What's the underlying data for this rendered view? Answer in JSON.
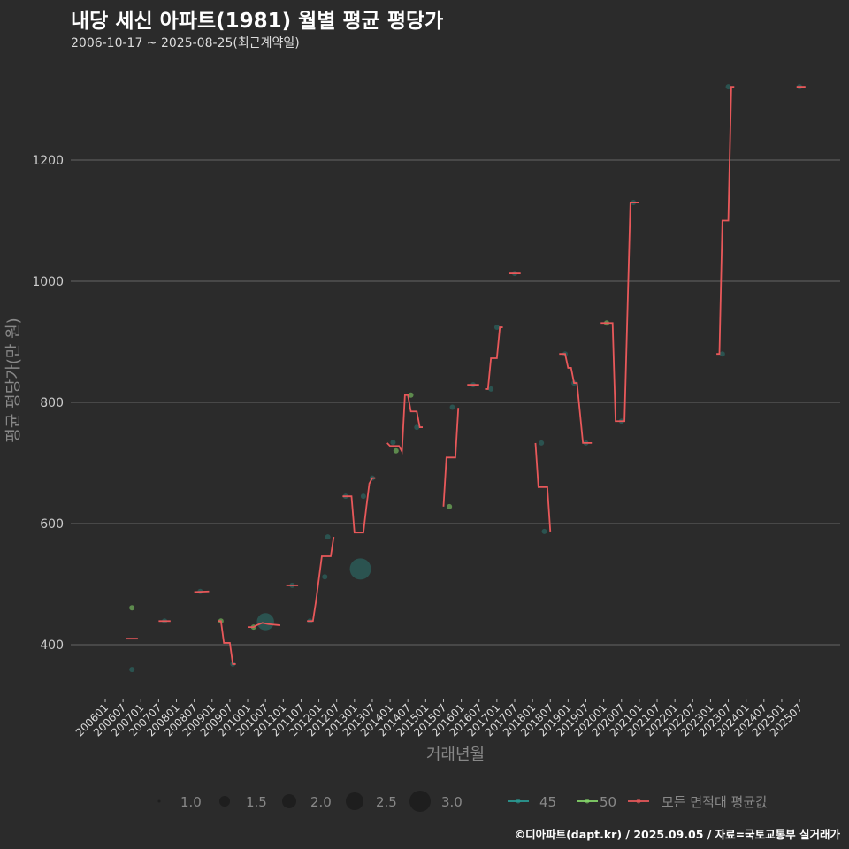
{
  "header": {
    "title": "내당 세신 아파트(1981) 월별 평균 평당가",
    "subtitle": "2006-10-17 ~ 2025-08-25(최근계약일)"
  },
  "footer": "©디아파트(dapt.kr) / 2025.09.05 / 자료=국토교통부 실거래가",
  "colors": {
    "background": "#2b2b2b",
    "s45": "#2a9d96",
    "s50": "#86d96a",
    "avg": "#e8585a",
    "grid": "#5a5a5a"
  },
  "chart_data": {
    "type": "line",
    "title": "내당 세신 아파트(1981) 월별 평균 평당가",
    "xlabel": "거래년월",
    "ylabel": "평균 평당가(만 원)",
    "ylim": [
      310,
      1340
    ],
    "xlim": [
      "2006-01",
      "2025-10"
    ],
    "yticks": [
      400,
      600,
      800,
      1000,
      1200
    ],
    "xticks": [
      "200601",
      "200607",
      "200701",
      "200707",
      "200801",
      "200807",
      "200901",
      "200907",
      "201001",
      "201007",
      "201101",
      "201107",
      "201201",
      "201207",
      "201301",
      "201307",
      "201401",
      "201407",
      "201501",
      "201507",
      "201601",
      "201607",
      "201701",
      "201707",
      "201801",
      "201807",
      "201901",
      "201907",
      "202001",
      "202007",
      "202101",
      "202107",
      "202201",
      "202207",
      "202301",
      "202307",
      "202401",
      "202407",
      "202501",
      "202507"
    ],
    "grid": "horizontal",
    "legend_position": "bottom",
    "size_legend": [
      "1.0",
      "1.5",
      "2.0",
      "2.5",
      "3.0"
    ],
    "color_legend": [
      "45",
      "50",
      "모든 면적대 평균값"
    ],
    "avg_series": {
      "name": "모든 면적대 평균값",
      "segments": [
        [
          [
            "2006-08",
            410
          ],
          [
            "2006-12",
            410
          ]
        ],
        [
          [
            "2007-07",
            439
          ],
          [
            "2007-11",
            439
          ]
        ],
        [
          [
            "2008-07",
            487
          ],
          [
            "2008-12",
            488
          ]
        ],
        [
          [
            "2009-03",
            439
          ],
          [
            "2009-04",
            439
          ],
          [
            "2009-05",
            403
          ],
          [
            "2009-07",
            403
          ],
          [
            "2009-08",
            368
          ],
          [
            "2009-09",
            368
          ]
        ],
        [
          [
            "2010-01",
            429
          ],
          [
            "2010-03",
            429
          ],
          [
            "2010-04",
            432
          ],
          [
            "2010-06",
            436
          ],
          [
            "2010-08",
            434
          ],
          [
            "2010-12",
            432
          ]
        ],
        [
          [
            "2011-02",
            498
          ],
          [
            "2011-06",
            498
          ]
        ],
        [
          [
            "2011-09",
            439
          ],
          [
            "2011-11",
            439
          ],
          [
            "2011-12",
            471
          ],
          [
            "2012-02",
            546
          ],
          [
            "2012-05",
            546
          ],
          [
            "2012-06",
            578
          ]
        ],
        [
          [
            "2012-09",
            645
          ],
          [
            "2012-12",
            645
          ],
          [
            "2013-01",
            585
          ],
          [
            "2013-04",
            585
          ],
          [
            "2013-05",
            627
          ],
          [
            "2013-06",
            666
          ],
          [
            "2013-07",
            675
          ],
          [
            "2013-08",
            675
          ]
        ],
        [
          [
            "2013-12",
            733
          ],
          [
            "2014-01",
            728
          ],
          [
            "2014-04",
            728
          ],
          [
            "2014-05",
            719
          ],
          [
            "2014-06",
            812
          ],
          [
            "2014-07",
            812
          ],
          [
            "2014-08",
            785
          ],
          [
            "2014-10",
            785
          ],
          [
            "2014-11",
            759
          ],
          [
            "2014-12",
            759
          ]
        ],
        [
          [
            "2015-07",
            628
          ],
          [
            "2015-08",
            709
          ],
          [
            "2015-11",
            709
          ],
          [
            "2015-12",
            791
          ]
        ],
        [
          [
            "2016-03",
            829
          ],
          [
            "2016-07",
            829
          ]
        ],
        [
          [
            "2016-09",
            822
          ],
          [
            "2016-10",
            822
          ],
          [
            "2016-11",
            873
          ],
          [
            "2017-01",
            873
          ],
          [
            "2017-02",
            924
          ],
          [
            "2017-03",
            924
          ]
        ],
        [
          [
            "2017-05",
            1013
          ],
          [
            "2017-09",
            1013
          ]
        ],
        [
          [
            "2018-02",
            733
          ],
          [
            "2018-03",
            660
          ],
          [
            "2018-06",
            660
          ],
          [
            "2018-07",
            587
          ]
        ],
        [
          [
            "2018-10",
            880
          ],
          [
            "2018-12",
            880
          ],
          [
            "2019-01",
            857
          ],
          [
            "2019-02",
            857
          ],
          [
            "2019-03",
            832
          ],
          [
            "2019-04",
            832
          ],
          [
            "2019-06",
            733
          ],
          [
            "2019-09",
            733
          ]
        ],
        [
          [
            "2019-12",
            931
          ],
          [
            "2020-04",
            931
          ],
          [
            "2020-05",
            769
          ],
          [
            "2020-08",
            769
          ],
          [
            "2020-10",
            1130
          ],
          [
            "2021-01",
            1130
          ]
        ],
        [
          [
            "2023-03",
            880
          ],
          [
            "2023-04",
            880
          ],
          [
            "2023-05",
            1100
          ],
          [
            "2023-07",
            1100
          ],
          [
            "2023-08",
            1321
          ],
          [
            "2023-09",
            1321
          ]
        ],
        [
          [
            "2025-06",
            1321
          ],
          [
            "2025-09",
            1321
          ]
        ]
      ]
    },
    "points": [
      {
        "area": "50",
        "x": "2006-10",
        "y": 461,
        "size": 1
      },
      {
        "area": "45",
        "x": "2006-10",
        "y": 359,
        "size": 1
      },
      {
        "area": "45",
        "x": "2007-09",
        "y": 439,
        "size": 1
      },
      {
        "area": "45",
        "x": "2008-09",
        "y": 488,
        "size": 1
      },
      {
        "area": "50",
        "x": "2009-04",
        "y": 439,
        "size": 1
      },
      {
        "area": "45",
        "x": "2009-08",
        "y": 368,
        "size": 1
      },
      {
        "area": "50",
        "x": "2010-03",
        "y": 429,
        "size": 1
      },
      {
        "area": "45",
        "x": "2010-07",
        "y": 438,
        "size": 2.5
      },
      {
        "area": "45",
        "x": "2011-04",
        "y": 498,
        "size": 1
      },
      {
        "area": "45",
        "x": "2011-10",
        "y": 439,
        "size": 1
      },
      {
        "area": "45",
        "x": "2012-03",
        "y": 512,
        "size": 1
      },
      {
        "area": "45",
        "x": "2012-04",
        "y": 578,
        "size": 1
      },
      {
        "area": "45",
        "x": "2012-10",
        "y": 645,
        "size": 1
      },
      {
        "area": "45",
        "x": "2013-03",
        "y": 525,
        "size": 3
      },
      {
        "area": "45",
        "x": "2013-04",
        "y": 645,
        "size": 1
      },
      {
        "area": "45",
        "x": "2013-07",
        "y": 675,
        "size": 1
      },
      {
        "area": "45",
        "x": "2014-02",
        "y": 734,
        "size": 1
      },
      {
        "area": "50",
        "x": "2014-03",
        "y": 720,
        "size": 1
      },
      {
        "area": "50",
        "x": "2014-08",
        "y": 812,
        "size": 1
      },
      {
        "area": "45",
        "x": "2014-10",
        "y": 759,
        "size": 1
      },
      {
        "area": "50",
        "x": "2015-09",
        "y": 628,
        "size": 1
      },
      {
        "area": "45",
        "x": "2015-10",
        "y": 792,
        "size": 1
      },
      {
        "area": "45",
        "x": "2016-05",
        "y": 829,
        "size": 1
      },
      {
        "area": "45",
        "x": "2016-11",
        "y": 822,
        "size": 1
      },
      {
        "area": "45",
        "x": "2017-01",
        "y": 924,
        "size": 1
      },
      {
        "area": "45",
        "x": "2017-07",
        "y": 1013,
        "size": 1
      },
      {
        "area": "45",
        "x": "2018-04",
        "y": 733,
        "size": 1
      },
      {
        "area": "45",
        "x": "2018-05",
        "y": 587,
        "size": 1
      },
      {
        "area": "45",
        "x": "2018-12",
        "y": 880,
        "size": 1
      },
      {
        "area": "45",
        "x": "2019-03",
        "y": 832,
        "size": 1
      },
      {
        "area": "45",
        "x": "2019-07",
        "y": 733,
        "size": 1
      },
      {
        "area": "50",
        "x": "2020-02",
        "y": 931,
        "size": 1
      },
      {
        "area": "45",
        "x": "2020-07",
        "y": 769,
        "size": 1
      },
      {
        "area": "45",
        "x": "2020-11",
        "y": 1130,
        "size": 1
      },
      {
        "area": "45",
        "x": "2023-05",
        "y": 880,
        "size": 1
      },
      {
        "area": "45",
        "x": "2023-07",
        "y": 1321,
        "size": 1
      },
      {
        "area": "45",
        "x": "2025-07",
        "y": 1321,
        "size": 1
      }
    ]
  }
}
